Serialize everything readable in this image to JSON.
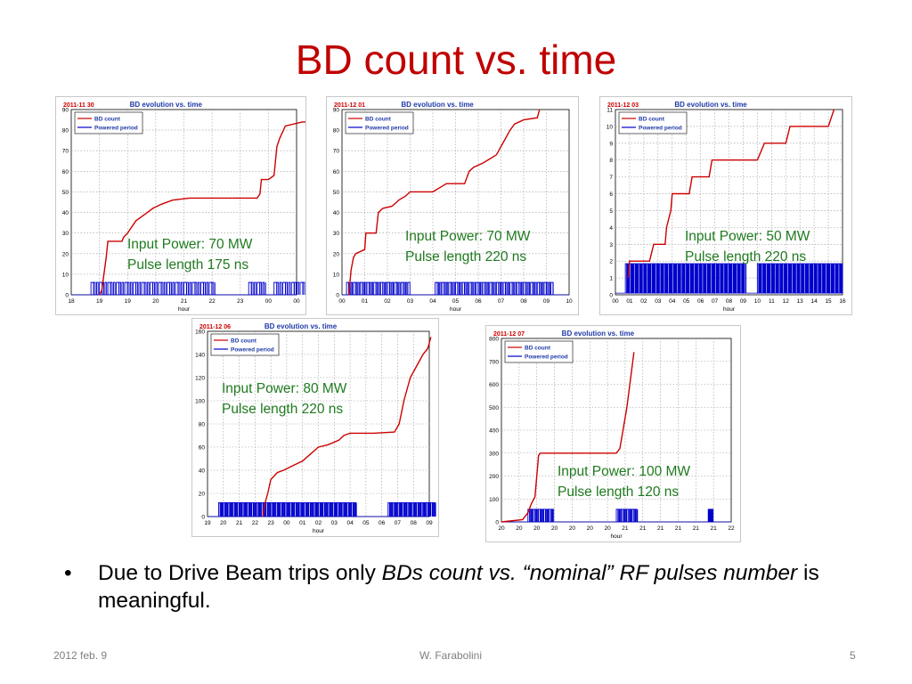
{
  "slide": {
    "title": "BD count vs. time",
    "bullet": {
      "normal1": "Due to Drive Beam trips only ",
      "italic": "BDs count vs. “nominal” RF pulses number",
      "normal2": " is meaningful."
    },
    "footer": {
      "date": "2012 feb. 9",
      "author": "W. Farabolini",
      "page": "5"
    }
  },
  "chart_data": [
    {
      "type": "line",
      "date_label": "2011-11 30",
      "title": "BD evolution vs. time",
      "xlabel": "hour",
      "ylabel": "",
      "x_ticks": [
        "18",
        "19",
        "19",
        "20",
        "21",
        "22",
        "23",
        "00",
        "00"
      ],
      "ylim": [
        0,
        90
      ],
      "y_ticks": [
        0,
        10,
        20,
        30,
        40,
        50,
        60,
        70,
        80,
        90
      ],
      "legend": [
        "BD count",
        "Powered period"
      ],
      "legend_position": "top-left",
      "grid": true,
      "annotation": [
        "Input Power: 70 MW",
        "Pulse length 175 ns"
      ],
      "series": [
        {
          "name": "BD count",
          "color": "#cc0000",
          "points": [
            [
              1.0,
              0
            ],
            [
              1.08,
              2
            ],
            [
              1.16,
              10
            ],
            [
              1.24,
              18
            ],
            [
              1.3,
              26
            ],
            [
              1.8,
              26
            ],
            [
              1.86,
              28
            ],
            [
              2.0,
              30
            ],
            [
              2.1,
              32
            ],
            [
              2.3,
              36
            ],
            [
              2.5,
              38
            ],
            [
              2.7,
              40
            ],
            [
              2.9,
              42
            ],
            [
              3.2,
              44
            ],
            [
              3.6,
              46
            ],
            [
              4.2,
              47
            ],
            [
              5.2,
              47
            ],
            [
              6.2,
              47
            ],
            [
              6.6,
              47
            ],
            [
              6.7,
              49
            ],
            [
              6.75,
              56
            ],
            [
              7.0,
              56
            ],
            [
              7.2,
              58
            ],
            [
              7.3,
              72
            ],
            [
              7.4,
              76
            ],
            [
              7.6,
              82
            ],
            [
              8.2,
              84
            ],
            [
              8.35,
              84
            ],
            [
              8.45,
              90
            ]
          ]
        },
        {
          "name": "Powered period",
          "color": "#0000cc",
          "base": 0,
          "level": 6,
          "intervals": [
            [
              0.7,
              5.1
            ],
            [
              6.3,
              6.9
            ],
            [
              7.2,
              8.95
            ]
          ]
        }
      ]
    },
    {
      "type": "line",
      "date_label": "2011-12 01",
      "title": "BD evolution vs. time",
      "xlabel": "hour",
      "ylabel": "",
      "x_ticks": [
        "00",
        "01",
        "02",
        "03",
        "04",
        "05",
        "06",
        "07",
        "08",
        "09",
        "10"
      ],
      "ylim": [
        0,
        90
      ],
      "y_ticks": [
        0,
        10,
        20,
        30,
        40,
        50,
        60,
        70,
        80,
        90
      ],
      "legend": [
        "BD count",
        "Powered period"
      ],
      "legend_position": "top-left",
      "grid": true,
      "annotation": [
        "Input Power: 70 MW",
        "Pulse length 220 ns"
      ],
      "series": [
        {
          "name": "BD count",
          "color": "#cc0000",
          "points": [
            [
              0.3,
              0
            ],
            [
              0.4,
              12
            ],
            [
              0.5,
              18
            ],
            [
              0.6,
              20
            ],
            [
              1.0,
              22
            ],
            [
              1.05,
              30
            ],
            [
              1.5,
              30
            ],
            [
              1.6,
              40
            ],
            [
              1.8,
              42
            ],
            [
              2.2,
              43
            ],
            [
              2.5,
              46
            ],
            [
              2.8,
              48
            ],
            [
              3.0,
              50
            ],
            [
              4.0,
              50
            ],
            [
              4.3,
              52
            ],
            [
              4.6,
              54
            ],
            [
              5.4,
              54
            ],
            [
              5.6,
              60
            ],
            [
              5.8,
              62
            ],
            [
              6.2,
              64
            ],
            [
              6.5,
              66
            ],
            [
              6.8,
              68
            ],
            [
              7.0,
              72
            ],
            [
              7.2,
              76
            ],
            [
              7.4,
              80
            ],
            [
              7.6,
              83
            ],
            [
              8.0,
              85
            ],
            [
              8.6,
              86
            ],
            [
              8.7,
              90
            ]
          ]
        },
        {
          "name": "Powered period",
          "color": "#0000cc",
          "base": 0,
          "level": 6,
          "intervals": [
            [
              0.2,
              3.0
            ],
            [
              4.1,
              9.3
            ]
          ]
        }
      ]
    },
    {
      "type": "line",
      "date_label": "2011-12 03",
      "title": "BD evolution vs. time",
      "xlabel": "hour",
      "ylabel": "",
      "x_ticks": [
        "00",
        "01",
        "02",
        "03",
        "04",
        "05",
        "06",
        "07",
        "08",
        "09",
        "10",
        "11",
        "12",
        "13",
        "14",
        "15",
        "16"
      ],
      "ylim": [
        0,
        11
      ],
      "y_ticks": [
        0,
        1,
        2,
        3,
        4,
        5,
        6,
        7,
        8,
        9,
        10,
        11
      ],
      "legend": [
        "BD count",
        "Powered period"
      ],
      "legend_position": "top-left",
      "grid": true,
      "annotation": [
        "Input Power: 50 MW",
        "Pulse length 220 ns"
      ],
      "series": [
        {
          "name": "BD count",
          "color": "#cc0000",
          "points": [
            [
              0.9,
              1
            ],
            [
              1.0,
              2
            ],
            [
              2.4,
              2
            ],
            [
              2.7,
              3
            ],
            [
              3.5,
              3
            ],
            [
              3.6,
              4
            ],
            [
              3.9,
              5
            ],
            [
              4.0,
              6
            ],
            [
              5.2,
              6
            ],
            [
              5.4,
              7
            ],
            [
              6.6,
              7
            ],
            [
              6.8,
              8
            ],
            [
              10.0,
              8
            ],
            [
              10.5,
              9
            ],
            [
              12.0,
              9
            ],
            [
              12.3,
              10
            ],
            [
              15.0,
              10
            ],
            [
              15.4,
              11
            ]
          ]
        },
        {
          "name": "Powered period",
          "color": "#0000cc",
          "base": 0.1,
          "level": 1.85,
          "intervals": [
            [
              0.7,
              9.2
            ],
            [
              10.0,
              16.0
            ]
          ]
        }
      ]
    },
    {
      "type": "line",
      "date_label": "2011-12 06",
      "title": "BD evolution vs. time",
      "xlabel": "hour",
      "ylabel": "",
      "x_ticks": [
        "19",
        "20",
        "21",
        "22",
        "23",
        "00",
        "01",
        "02",
        "03",
        "04",
        "05",
        "06",
        "07",
        "08",
        "09"
      ],
      "ylim": [
        0,
        160
      ],
      "y_ticks": [
        0,
        20,
        40,
        60,
        80,
        100,
        120,
        140,
        160
      ],
      "legend": [
        "BD count",
        "Powered period"
      ],
      "legend_position": "top-left",
      "grid": true,
      "annotation": [
        "Input Power: 80 MW",
        "Pulse length 220 ns"
      ],
      "series": [
        {
          "name": "BD count",
          "color": "#cc0000",
          "points": [
            [
              3.5,
              0
            ],
            [
              3.6,
              10
            ],
            [
              3.8,
              20
            ],
            [
              4.0,
              32
            ],
            [
              4.4,
              38
            ],
            [
              4.8,
              40
            ],
            [
              5.4,
              44
            ],
            [
              6.0,
              48
            ],
            [
              6.5,
              54
            ],
            [
              7.0,
              60
            ],
            [
              7.6,
              62
            ],
            [
              8.3,
              66
            ],
            [
              8.6,
              70
            ],
            [
              9.0,
              72
            ],
            [
              10.5,
              72
            ],
            [
              11.8,
              73
            ],
            [
              12.1,
              80
            ],
            [
              12.4,
              100
            ],
            [
              12.8,
              120
            ],
            [
              13.2,
              130
            ],
            [
              13.6,
              140
            ],
            [
              13.9,
              145
            ],
            [
              14.1,
              155
            ]
          ]
        },
        {
          "name": "Powered period",
          "color": "#0000cc",
          "base": 0,
          "level": 12,
          "intervals": [
            [
              0.7,
              9.4
            ],
            [
              11.4,
              14.4
            ]
          ]
        }
      ]
    },
    {
      "type": "line",
      "date_label": "2011-12 07",
      "title": "BD evolution vs. time",
      "xlabel": "hour",
      "ylabel": "",
      "x_ticks": [
        "20",
        "20",
        "20",
        "20",
        "20",
        "20",
        "20",
        "21",
        "21",
        "21",
        "21",
        "21",
        "21",
        "22"
      ],
      "ylim": [
        0,
        800
      ],
      "y_ticks": [
        0,
        100,
        200,
        300,
        400,
        500,
        600,
        700,
        800
      ],
      "legend": [
        "BD count",
        "Powered period"
      ],
      "legend_position": "top-left",
      "grid": true,
      "annotation": [
        "Input Power: 100 MW",
        "Pulse length 120 ns"
      ],
      "series": [
        {
          "name": "BD count",
          "color": "#cc0000",
          "points": [
            [
              0.0,
              0
            ],
            [
              1.2,
              10
            ],
            [
              1.5,
              40
            ],
            [
              1.7,
              80
            ],
            [
              1.9,
              110
            ],
            [
              2.1,
              290
            ],
            [
              2.2,
              300
            ],
            [
              6.5,
              300
            ],
            [
              6.7,
              320
            ],
            [
              7.1,
              500
            ],
            [
              7.5,
              740
            ]
          ]
        },
        {
          "name": "Powered period",
          "color": "#0000cc",
          "base": 0,
          "level": 55,
          "intervals": [
            [
              1.5,
              3.0
            ],
            [
              6.5,
              7.7
            ],
            [
              11.7,
              12.0
            ]
          ]
        }
      ]
    }
  ]
}
